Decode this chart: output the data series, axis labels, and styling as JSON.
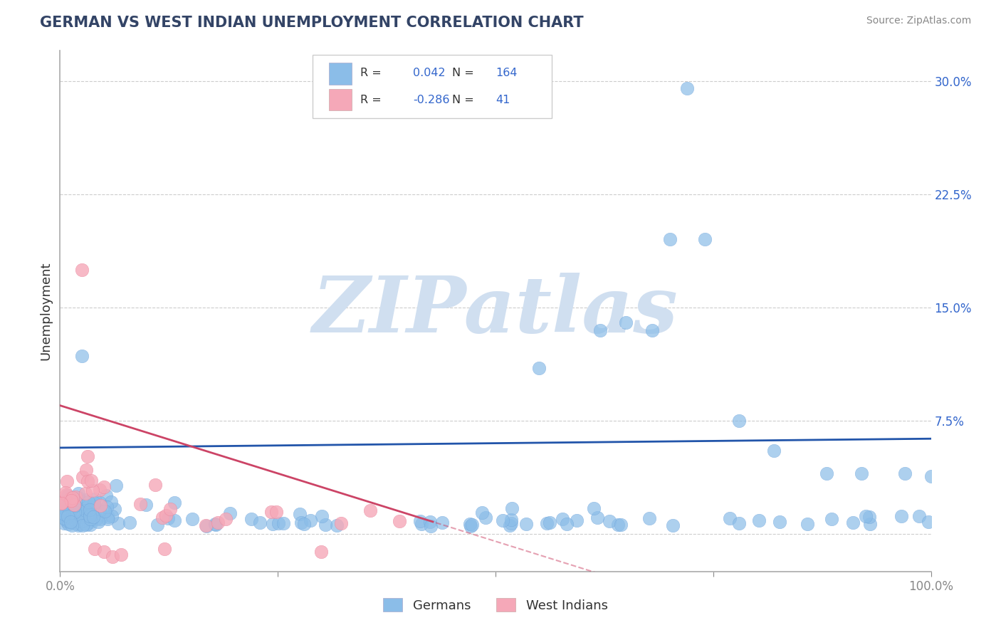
{
  "title": "GERMAN VS WEST INDIAN UNEMPLOYMENT CORRELATION CHART",
  "source_text": "Source: ZipAtlas.com",
  "ylabel": "Unemployment",
  "xlim": [
    0,
    1.0
  ],
  "ylim": [
    -0.025,
    0.32
  ],
  "yticks": [
    0.0,
    0.075,
    0.15,
    0.225,
    0.3
  ],
  "yticklabels": [
    "",
    "7.5%",
    "15.0%",
    "22.5%",
    "30.0%"
  ],
  "xticks": [
    0.0,
    0.25,
    0.5,
    0.75,
    1.0
  ],
  "german_color": "#8bbde8",
  "german_edge": "#6aa0d8",
  "westindian_color": "#f5a8b8",
  "westindian_edge": "#e88098",
  "trendline_german_color": "#2255aa",
  "trendline_westindian_color": "#cc4466",
  "R_german": "0.042",
  "N_german": "164",
  "R_westindian": "-0.286",
  "N_westindian": "41",
  "legend_text_color": "#3366cc",
  "watermark": "ZIPatlas",
  "watermark_color": "#d0dff0",
  "background_color": "#ffffff",
  "grid_color": "#cccccc",
  "legend_label_german": "Germans",
  "legend_label_westindian": "West Indians",
  "title_color": "#334466",
  "source_color": "#888888",
  "axis_color": "#aaaaaa"
}
